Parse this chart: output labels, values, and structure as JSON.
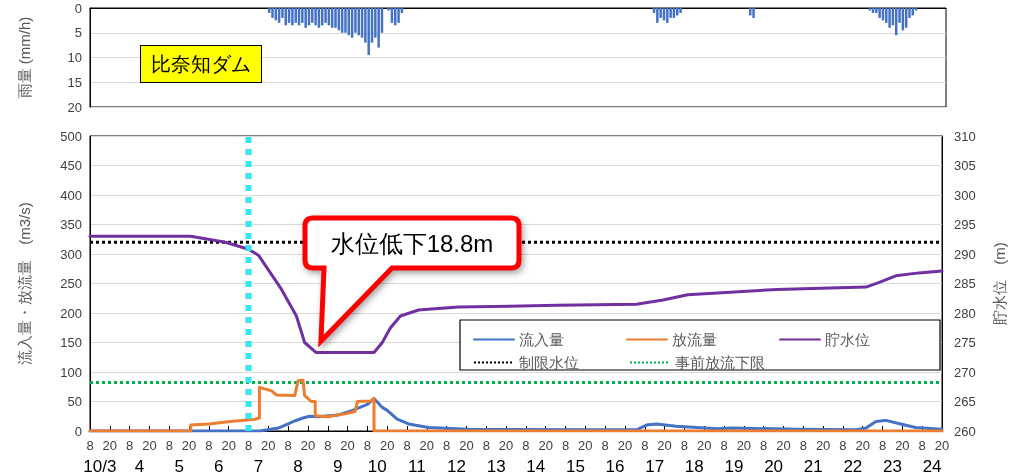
{
  "chart_data": [
    {
      "type": "bar",
      "ylabel": "雨量 (mm/h)",
      "annotations": [
        "比奈知ダム"
      ],
      "color": "#4472c4",
      "xlim": [
        "--10-03T08:00",
        "--10-24T20:00"
      ],
      "ylim": [
        20,
        0
      ],
      "yticks": [
        0,
        5,
        10,
        15,
        20
      ],
      "grid": "y",
      "tick_labels": "y",
      "x": [
        "--10-07T20:00",
        "--10-07T22:00",
        "--10-08T00:00",
        "--10-08T02:00",
        "--10-08T04:00",
        "--10-08T06:00",
        "--10-08T08:00",
        "--10-08T10:00",
        "--10-08T12:00",
        "--10-08T14:00",
        "--10-08T16:00",
        "--10-08T18:00",
        "--10-08T20:00",
        "--10-08T22:00",
        "--10-09T00:00",
        "--10-09T02:00",
        "--10-09T04:00",
        "--10-09T06:00",
        "--10-09T08:00",
        "--10-09T10:00",
        "--10-09T12:00",
        "--10-09T14:00",
        "--10-09T16:00",
        "--10-09T18:00",
        "--10-09T20:00",
        "--10-09T22:00",
        "--10-10T00:00",
        "--10-10T02:00",
        "--10-10T04:00",
        "--10-10T06:00",
        "--10-10T08:00",
        "--10-10T10:00",
        "--10-10T12:00",
        "--10-10T14:00",
        "--10-10T16:00",
        "--10-10T18:00",
        "--10-10T20:00",
        "--10-10T22:00",
        "--10-11T00:00",
        "--10-11T02:00",
        "--10-11T04:00",
        "--10-17T12:00",
        "--10-17T14:00",
        "--10-17T16:00",
        "--10-17T18:00",
        "--10-17T20:00",
        "--10-17T22:00",
        "--10-18T00:00",
        "--10-18T02:00",
        "--10-18T04:00",
        "--10-19T22:00",
        "--10-20T00:00",
        "--10-22T22:00",
        "--10-23T00:00",
        "--10-23T02:00",
        "--10-23T04:00",
        "--10-23T06:00",
        "--10-23T08:00",
        "--10-23T10:00",
        "--10-23T12:00",
        "--10-23T14:00",
        "--10-23T16:00",
        "--10-23T18:00",
        "--10-23T20:00",
        "--10-23T22:00",
        "--10-24T00:00",
        "--10-24T02:00"
      ],
      "values": [
        1,
        2,
        2.5,
        3,
        2,
        3.5,
        3,
        3.5,
        3,
        3.5,
        3,
        4,
        3.5,
        3,
        3.5,
        4,
        3.5,
        3,
        3.5,
        4,
        4,
        4.5,
        5,
        5,
        5.5,
        6,
        5,
        5.5,
        6,
        7,
        9.5,
        7,
        6,
        8,
        5,
        0,
        0.5,
        3,
        3.5,
        3,
        1,
        1,
        3,
        2,
        2.5,
        3,
        2,
        2,
        1.5,
        1,
        1.5,
        2,
        0.5,
        1,
        1,
        2,
        2.5,
        3,
        4,
        3.5,
        5.5,
        3,
        4.5,
        4,
        2,
        1.5,
        0.5
      ]
    },
    {
      "type": "line",
      "ylabel": "流入量・放流量　(m3/s)",
      "y2label": "貯水位　(m)",
      "annotations": [
        "水位低下18.8m"
      ],
      "legend": "right",
      "marker": "none",
      "grid": "y",
      "xlim": [
        "--10-03T08:00",
        "--10-24T20:00"
      ],
      "xticks": [
        {
          "value": "--10-03T08:00",
          "label": "8"
        },
        {
          "value": "--10-03T20:00",
          "label": "20"
        },
        {
          "value": "--10-04T08:00",
          "label": "8"
        },
        {
          "value": "--10-04T20:00",
          "label": "20"
        },
        {
          "value": "--10-05T08:00",
          "label": "8"
        },
        {
          "value": "--10-05T20:00",
          "label": "20"
        },
        {
          "value": "--10-06T08:00",
          "label": "8"
        },
        {
          "value": "--10-06T20:00",
          "label": "20"
        },
        {
          "value": "--10-07T08:00",
          "label": "8"
        },
        {
          "value": "--10-07T20:00",
          "label": "20"
        },
        {
          "value": "--10-08T08:00",
          "label": "8"
        },
        {
          "value": "--10-08T20:00",
          "label": "20"
        },
        {
          "value": "--10-09T08:00",
          "label": "8"
        },
        {
          "value": "--10-09T20:00",
          "label": "20"
        },
        {
          "value": "--10-10T08:00",
          "label": "8"
        },
        {
          "value": "--10-10T20:00",
          "label": "20"
        },
        {
          "value": "--10-11T08:00",
          "label": "8"
        },
        {
          "value": "--10-11T20:00",
          "label": "20"
        },
        {
          "value": "--10-12T08:00",
          "label": "8"
        },
        {
          "value": "--10-12T20:00",
          "label": "20"
        },
        {
          "value": "--10-13T08:00",
          "label": "8"
        },
        {
          "value": "--10-13T20:00",
          "label": "20"
        },
        {
          "value": "--10-14T08:00",
          "label": "8"
        },
        {
          "value": "--10-14T20:00",
          "label": "20"
        },
        {
          "value": "--10-15T08:00",
          "label": "8"
        },
        {
          "value": "--10-15T20:00",
          "label": "20"
        },
        {
          "value": "--10-16T08:00",
          "label": "8"
        },
        {
          "value": "--10-16T20:00",
          "label": "20"
        },
        {
          "value": "--10-17T08:00",
          "label": "8"
        },
        {
          "value": "--10-17T20:00",
          "label": "20"
        },
        {
          "value": "--10-18T08:00",
          "label": "8"
        },
        {
          "value": "--10-18T20:00",
          "label": "20"
        },
        {
          "value": "--10-19T08:00",
          "label": "8"
        },
        {
          "value": "--10-19T20:00",
          "label": "20"
        },
        {
          "value": "--10-20T08:00",
          "label": "8"
        },
        {
          "value": "--10-20T20:00",
          "label": "20"
        },
        {
          "value": "--10-21T08:00",
          "label": "8"
        },
        {
          "value": "--10-21T20:00",
          "label": "20"
        },
        {
          "value": "--10-22T08:00",
          "label": "8"
        },
        {
          "value": "--10-22T20:00",
          "label": "20"
        },
        {
          "value": "--10-23T08:00",
          "label": "8"
        },
        {
          "value": "--10-23T20:00",
          "label": "20"
        },
        {
          "value": "--10-24T08:00",
          "label": "8"
        },
        {
          "value": "--10-24T20:00",
          "label": "20"
        }
      ],
      "x2lim": [
        "--10-03T08:00",
        "--10-24T20:00"
      ],
      "x2ticks": [
        {
          "value": "--10-03T14:00",
          "label": "10/3"
        },
        {
          "value": "--10-04T14:00",
          "label": "4"
        },
        {
          "value": "--10-05T14:00",
          "label": "5"
        },
        {
          "value": "--10-06T14:00",
          "label": "6"
        },
        {
          "value": "--10-07T14:00",
          "label": "7"
        },
        {
          "value": "--10-08T14:00",
          "label": "8"
        },
        {
          "value": "--10-09T14:00",
          "label": "9"
        },
        {
          "value": "--10-10T14:00",
          "label": "10"
        },
        {
          "value": "--10-11T14:00",
          "label": "11"
        },
        {
          "value": "--10-12T14:00",
          "label": "12"
        },
        {
          "value": "--10-13T14:00",
          "label": "13"
        },
        {
          "value": "--10-14T14:00",
          "label": "14"
        },
        {
          "value": "--10-15T14:00",
          "label": "15"
        },
        {
          "value": "--10-16T14:00",
          "label": "16"
        },
        {
          "value": "--10-17T14:00",
          "label": "17"
        },
        {
          "value": "--10-18T14:00",
          "label": "18"
        },
        {
          "value": "--10-19T14:00",
          "label": "19"
        },
        {
          "value": "--10-20T14:00",
          "label": "20"
        },
        {
          "value": "--10-21T14:00",
          "label": "21"
        },
        {
          "value": "--10-22T14:00",
          "label": "22"
        },
        {
          "value": "--10-23T14:00",
          "label": "23"
        },
        {
          "value": "--10-24T14:00",
          "label": "24"
        }
      ],
      "ylim": [
        0,
        500
      ],
      "yticks": [
        0,
        50,
        100,
        150,
        200,
        250,
        300,
        350,
        400,
        450,
        500
      ],
      "y2lim": [
        260,
        310
      ],
      "y2ticks": [
        260,
        265,
        270,
        275,
        280,
        285,
        290,
        295,
        300,
        305,
        310
      ],
      "series": [
        {
          "name": "流入量",
          "color": "#4472c4",
          "x": [
            "--10-03T08:00",
            "--10-07T15:00",
            "--10-08T02:00",
            "--10-08T08:00",
            "--10-08T12:00",
            "--10-08T17:00",
            "--10-08T21:00",
            "--10-09T02:00",
            "--10-09T14:00",
            "--10-09T23:00",
            "--10-10T08:00",
            "--10-10T12:00",
            "--10-10T17:00",
            "--10-10T20:00",
            "--10-11T02:00",
            "--10-11T09:00",
            "--10-11T21:00",
            "--10-12T21:00",
            "--10-16T03:00",
            "--10-17T03:00",
            "--10-17T09:00",
            "--10-17T15:00",
            "--10-18T03:00",
            "--10-19T04:00",
            "--10-19T13:00",
            "--10-21T04:00",
            "--10-22T16:00",
            "--10-22T22:00",
            "--10-23T04:00",
            "--10-23T10:00",
            "--10-23T19:00",
            "--10-24T04:00",
            "--10-24T20:00"
          ],
          "values": [
            0,
            0,
            5,
            12,
            17,
            22,
            25,
            24,
            27,
            35,
            45,
            55,
            40,
            35,
            20,
            12,
            6,
            3,
            2,
            2,
            10,
            12,
            8,
            4,
            5,
            3,
            2,
            5,
            16,
            18,
            12,
            6,
            3
          ]
        },
        {
          "name": "放流量",
          "color": "#ed7d31",
          "x": [
            "--10-03T08:00",
            "--10-05T21:00",
            "--10-05T21:00",
            "--10-06T08:00",
            "--10-06T21:00",
            "--10-07T12:00",
            "--10-07T14:36",
            "--10-07T14:36",
            "--10-07T22:00",
            "--10-08T01:00",
            "--10-08T12:00",
            "--10-08T14:00",
            "--10-08T17:00",
            "--10-08T18:00",
            "--10-08T22:00",
            "--10-09T00:24",
            "--10-09T00:24",
            "--10-09T08:00",
            "--10-09T18:30",
            "--10-10T00:30",
            "--10-10T02:00",
            "--10-10T10:00",
            "--10-10T12:00",
            "--10-10T12:00",
            "--10-24T20:00"
          ],
          "values": [
            0,
            0,
            10,
            12,
            16,
            20,
            22,
            74,
            68,
            61,
            60,
            85,
            86,
            60,
            50,
            50,
            26,
            24,
            29,
            33,
            50,
            51,
            55,
            0,
            0
          ]
        },
        {
          "name": "貯水位",
          "color": "#7030a0",
          "axis": "y2",
          "x": [
            "--10-03T08:00",
            "--10-05T21:00",
            "--10-06T18:00",
            "--10-07T08:00",
            "--10-07T14:00",
            "--10-08T04:00",
            "--10-08T13:00",
            "--10-08T18:00",
            "--10-09T01:00",
            "--10-10T12:00",
            "--10-10T17:00",
            "--10-10T22:00",
            "--10-11T04:00",
            "--10-11T15:00",
            "--10-12T15:00",
            "--10-15T03:00",
            "--10-17T03:00",
            "--10-17T19:00",
            "--10-18T10:00",
            "--10-20T16:00",
            "--10-22T22:00",
            "--10-23T06:00",
            "--10-23T16:00",
            "--10-24T06:00",
            "--10-24T20:00"
          ],
          "values": [
            293,
            293,
            292,
            290.8,
            289.8,
            284,
            279.5,
            275,
            273.3,
            273.3,
            275,
            277.5,
            279.5,
            280.5,
            281,
            281.3,
            281.5,
            282.2,
            283.1,
            284,
            284.4,
            285.2,
            286.3,
            286.8,
            287.1
          ]
        }
      ],
      "ref_lines": [
        {
          "axis": "y2",
          "value": 292,
          "label": "制限水位",
          "color": "#000000",
          "line_style": "dotted"
        },
        {
          "axis": "y2",
          "value": 268.2,
          "label": "事前放流下限",
          "color": "#00b050",
          "line_style": "dotted"
        },
        {
          "axis": "x",
          "value": "--10-07T08:00",
          "color": "#33e6f0",
          "line_style": "dotted"
        }
      ]
    }
  ]
}
